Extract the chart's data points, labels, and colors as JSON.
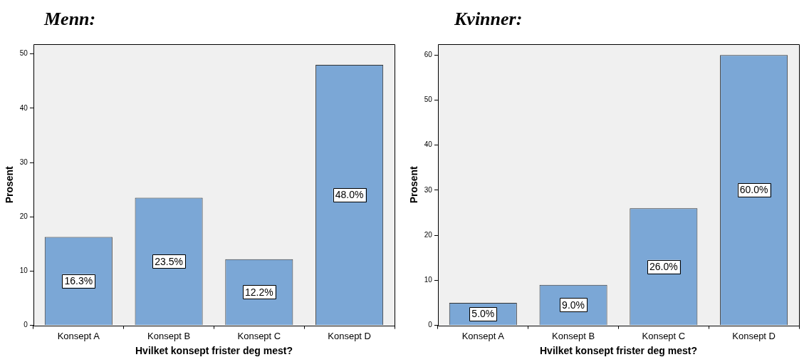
{
  "chart_data": [
    {
      "type": "bar",
      "title": "Menn:",
      "xlabel": "Hvilket konsept frister deg mest?",
      "ylabel": "Prosent",
      "categories": [
        "Konsept A",
        "Konsept B",
        "Konsept C",
        "Konsept D"
      ],
      "values": [
        16.3,
        23.5,
        12.2,
        48.0
      ],
      "value_labels": [
        "16.3%",
        "23.5%",
        "12.2%",
        "48.0%"
      ],
      "color": "#7ba7d6",
      "ylim": [
        0,
        51.8
      ],
      "yticks": [
        0,
        10,
        20,
        30,
        40,
        50
      ],
      "grid": false,
      "legend": false
    },
    {
      "type": "bar",
      "title": "Kvinner:",
      "xlabel": "Hvilket konsept frister deg mest?",
      "ylabel": "Prosent",
      "categories": [
        "Konsept A",
        "Konsept B",
        "Konsept C",
        "Konsept D"
      ],
      "values": [
        5.0,
        9.0,
        26.0,
        60.0
      ],
      "value_labels": [
        "5.0%",
        "9.0%",
        "26.0%",
        "60.0%"
      ],
      "color": "#7ba7d6",
      "ylim": [
        0,
        62.4
      ],
      "yticks": [
        0,
        10,
        20,
        30,
        40,
        50,
        60
      ],
      "grid": false,
      "legend": false
    }
  ]
}
